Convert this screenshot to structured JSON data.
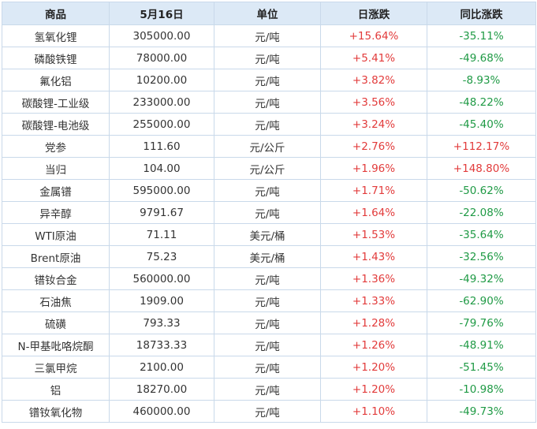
{
  "table": {
    "header": [
      "商品",
      "5月16日",
      "单位",
      "日涨跌",
      "同比涨跌"
    ],
    "rows": [
      [
        "氢氧化锂",
        "305000.00",
        "元/吨",
        "+15.64%",
        "-35.11%"
      ],
      [
        "磷酸铁锂",
        "78000.00",
        "元/吨",
        "+5.41%",
        "-49.68%"
      ],
      [
        "氟化铝",
        "10200.00",
        "元/吨",
        "+3.82%",
        "-8.93%"
      ],
      [
        "碳酸锂-工业级",
        "233000.00",
        "元/吨",
        "+3.56%",
        "-48.22%"
      ],
      [
        "碳酸锂-电池级",
        "255000.00",
        "元/吨",
        "+3.24%",
        "-45.40%"
      ],
      [
        "党参",
        "111.60",
        "元/公斤",
        "+2.76%",
        "+112.17%"
      ],
      [
        "当归",
        "104.00",
        "元/公斤",
        "+1.96%",
        "+148.80%"
      ],
      [
        "金属镨",
        "595000.00",
        "元/吨",
        "+1.71%",
        "-50.62%"
      ],
      [
        "异辛醇",
        "9791.67",
        "元/吨",
        "+1.64%",
        "-22.08%"
      ],
      [
        "WTI原油",
        "71.11",
        "美元/桶",
        "+1.53%",
        "-35.64%"
      ],
      [
        "Brent原油",
        "75.23",
        "美元/桶",
        "+1.43%",
        "-32.56%"
      ],
      [
        "镨钕合金",
        "560000.00",
        "元/吨",
        "+1.36%",
        "-49.32%"
      ],
      [
        "石油焦",
        "1909.00",
        "元/吨",
        "+1.33%",
        "-62.90%"
      ],
      [
        "硫磺",
        "793.33",
        "元/吨",
        "+1.28%",
        "-79.76%"
      ],
      [
        "N-甲基吡咯烷酮",
        "18733.33",
        "元/吨",
        "+1.26%",
        "-48.91%"
      ],
      [
        "三氯甲烷",
        "2100.00",
        "元/吨",
        "+1.20%",
        "-51.45%"
      ],
      [
        "铝",
        "18270.00",
        "元/吨",
        "+1.20%",
        "-10.98%"
      ],
      [
        "镨钕氧化物",
        "460000.00",
        "元/吨",
        "+1.10%",
        "-49.73%"
      ]
    ]
  }
}
